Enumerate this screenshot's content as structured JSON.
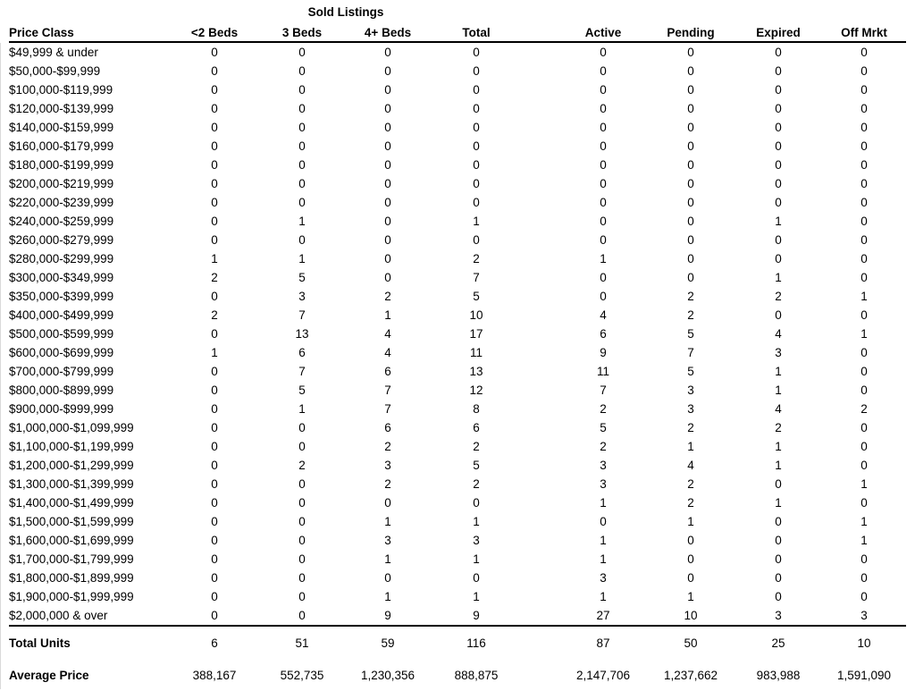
{
  "report": {
    "group_header": "Sold Listings",
    "columns": [
      "Price Class",
      "<2 Beds",
      "3 Beds",
      "4+ Beds",
      "Total",
      "Active",
      "Pending",
      "Expired",
      "Off Mrkt"
    ],
    "rows": [
      {
        "price_class": "$49,999 & under",
        "values": [
          "0",
          "0",
          "0",
          "0",
          "0",
          "0",
          "0",
          "0"
        ]
      },
      {
        "price_class": "$50,000-$99,999",
        "values": [
          "0",
          "0",
          "0",
          "0",
          "0",
          "0",
          "0",
          "0"
        ]
      },
      {
        "price_class": "$100,000-$119,999",
        "values": [
          "0",
          "0",
          "0",
          "0",
          "0",
          "0",
          "0",
          "0"
        ]
      },
      {
        "price_class": "$120,000-$139,999",
        "values": [
          "0",
          "0",
          "0",
          "0",
          "0",
          "0",
          "0",
          "0"
        ]
      },
      {
        "price_class": "$140,000-$159,999",
        "values": [
          "0",
          "0",
          "0",
          "0",
          "0",
          "0",
          "0",
          "0"
        ]
      },
      {
        "price_class": "$160,000-$179,999",
        "values": [
          "0",
          "0",
          "0",
          "0",
          "0",
          "0",
          "0",
          "0"
        ]
      },
      {
        "price_class": "$180,000-$199,999",
        "values": [
          "0",
          "0",
          "0",
          "0",
          "0",
          "0",
          "0",
          "0"
        ]
      },
      {
        "price_class": "$200,000-$219,999",
        "values": [
          "0",
          "0",
          "0",
          "0",
          "0",
          "0",
          "0",
          "0"
        ]
      },
      {
        "price_class": "$220,000-$239,999",
        "values": [
          "0",
          "0",
          "0",
          "0",
          "0",
          "0",
          "0",
          "0"
        ]
      },
      {
        "price_class": "$240,000-$259,999",
        "values": [
          "0",
          "1",
          "0",
          "1",
          "0",
          "0",
          "1",
          "0"
        ]
      },
      {
        "price_class": "$260,000-$279,999",
        "values": [
          "0",
          "0",
          "0",
          "0",
          "0",
          "0",
          "0",
          "0"
        ]
      },
      {
        "price_class": "$280,000-$299,999",
        "values": [
          "1",
          "1",
          "0",
          "2",
          "1",
          "0",
          "0",
          "0"
        ]
      },
      {
        "price_class": "$300,000-$349,999",
        "values": [
          "2",
          "5",
          "0",
          "7",
          "0",
          "0",
          "1",
          "0"
        ]
      },
      {
        "price_class": "$350,000-$399,999",
        "values": [
          "0",
          "3",
          "2",
          "5",
          "0",
          "2",
          "2",
          "1"
        ]
      },
      {
        "price_class": "$400,000-$499,999",
        "values": [
          "2",
          "7",
          "1",
          "10",
          "4",
          "2",
          "0",
          "0"
        ]
      },
      {
        "price_class": "$500,000-$599,999",
        "values": [
          "0",
          "13",
          "4",
          "17",
          "6",
          "5",
          "4",
          "1"
        ]
      },
      {
        "price_class": "$600,000-$699,999",
        "values": [
          "1",
          "6",
          "4",
          "11",
          "9",
          "7",
          "3",
          "0"
        ]
      },
      {
        "price_class": "$700,000-$799,999",
        "values": [
          "0",
          "7",
          "6",
          "13",
          "11",
          "5",
          "1",
          "0"
        ]
      },
      {
        "price_class": "$800,000-$899,999",
        "values": [
          "0",
          "5",
          "7",
          "12",
          "7",
          "3",
          "1",
          "0"
        ]
      },
      {
        "price_class": "$900,000-$999,999",
        "values": [
          "0",
          "1",
          "7",
          "8",
          "2",
          "3",
          "4",
          "2"
        ]
      },
      {
        "price_class": "$1,000,000-$1,099,999",
        "values": [
          "0",
          "0",
          "6",
          "6",
          "5",
          "2",
          "2",
          "0"
        ]
      },
      {
        "price_class": "$1,100,000-$1,199,999",
        "values": [
          "0",
          "0",
          "2",
          "2",
          "2",
          "1",
          "1",
          "0"
        ]
      },
      {
        "price_class": "$1,200,000-$1,299,999",
        "values": [
          "0",
          "2",
          "3",
          "5",
          "3",
          "4",
          "1",
          "0"
        ]
      },
      {
        "price_class": "$1,300,000-$1,399,999",
        "values": [
          "0",
          "0",
          "2",
          "2",
          "3",
          "2",
          "0",
          "1"
        ]
      },
      {
        "price_class": "$1,400,000-$1,499,999",
        "values": [
          "0",
          "0",
          "0",
          "0",
          "1",
          "2",
          "1",
          "0"
        ]
      },
      {
        "price_class": "$1,500,000-$1,599,999",
        "values": [
          "0",
          "0",
          "1",
          "1",
          "0",
          "1",
          "0",
          "1"
        ]
      },
      {
        "price_class": "$1,600,000-$1,699,999",
        "values": [
          "0",
          "0",
          "3",
          "3",
          "1",
          "0",
          "0",
          "1"
        ]
      },
      {
        "price_class": "$1,700,000-$1,799,999",
        "values": [
          "0",
          "0",
          "1",
          "1",
          "1",
          "0",
          "0",
          "0"
        ]
      },
      {
        "price_class": "$1,800,000-$1,899,999",
        "values": [
          "0",
          "0",
          "0",
          "0",
          "3",
          "0",
          "0",
          "0"
        ]
      },
      {
        "price_class": "$1,900,000-$1,999,999",
        "values": [
          "0",
          "0",
          "1",
          "1",
          "1",
          "1",
          "0",
          "0"
        ]
      },
      {
        "price_class": "$2,000,000 & over",
        "values": [
          "0",
          "0",
          "9",
          "9",
          "27",
          "10",
          "3",
          "3"
        ]
      }
    ],
    "footer": {
      "total_units": {
        "label": "Total Units",
        "values": [
          "6",
          "51",
          "59",
          "116",
          "87",
          "50",
          "25",
          "10"
        ]
      },
      "average_price": {
        "label": "Average Price",
        "values": [
          "388,167",
          "552,735",
          "1,230,356",
          "888,875",
          "2,147,706",
          "1,237,662",
          "983,988",
          "1,591,090"
        ]
      }
    },
    "colors": {
      "text": "#000000",
      "rule": "#000000",
      "background": "#ffffff"
    }
  }
}
